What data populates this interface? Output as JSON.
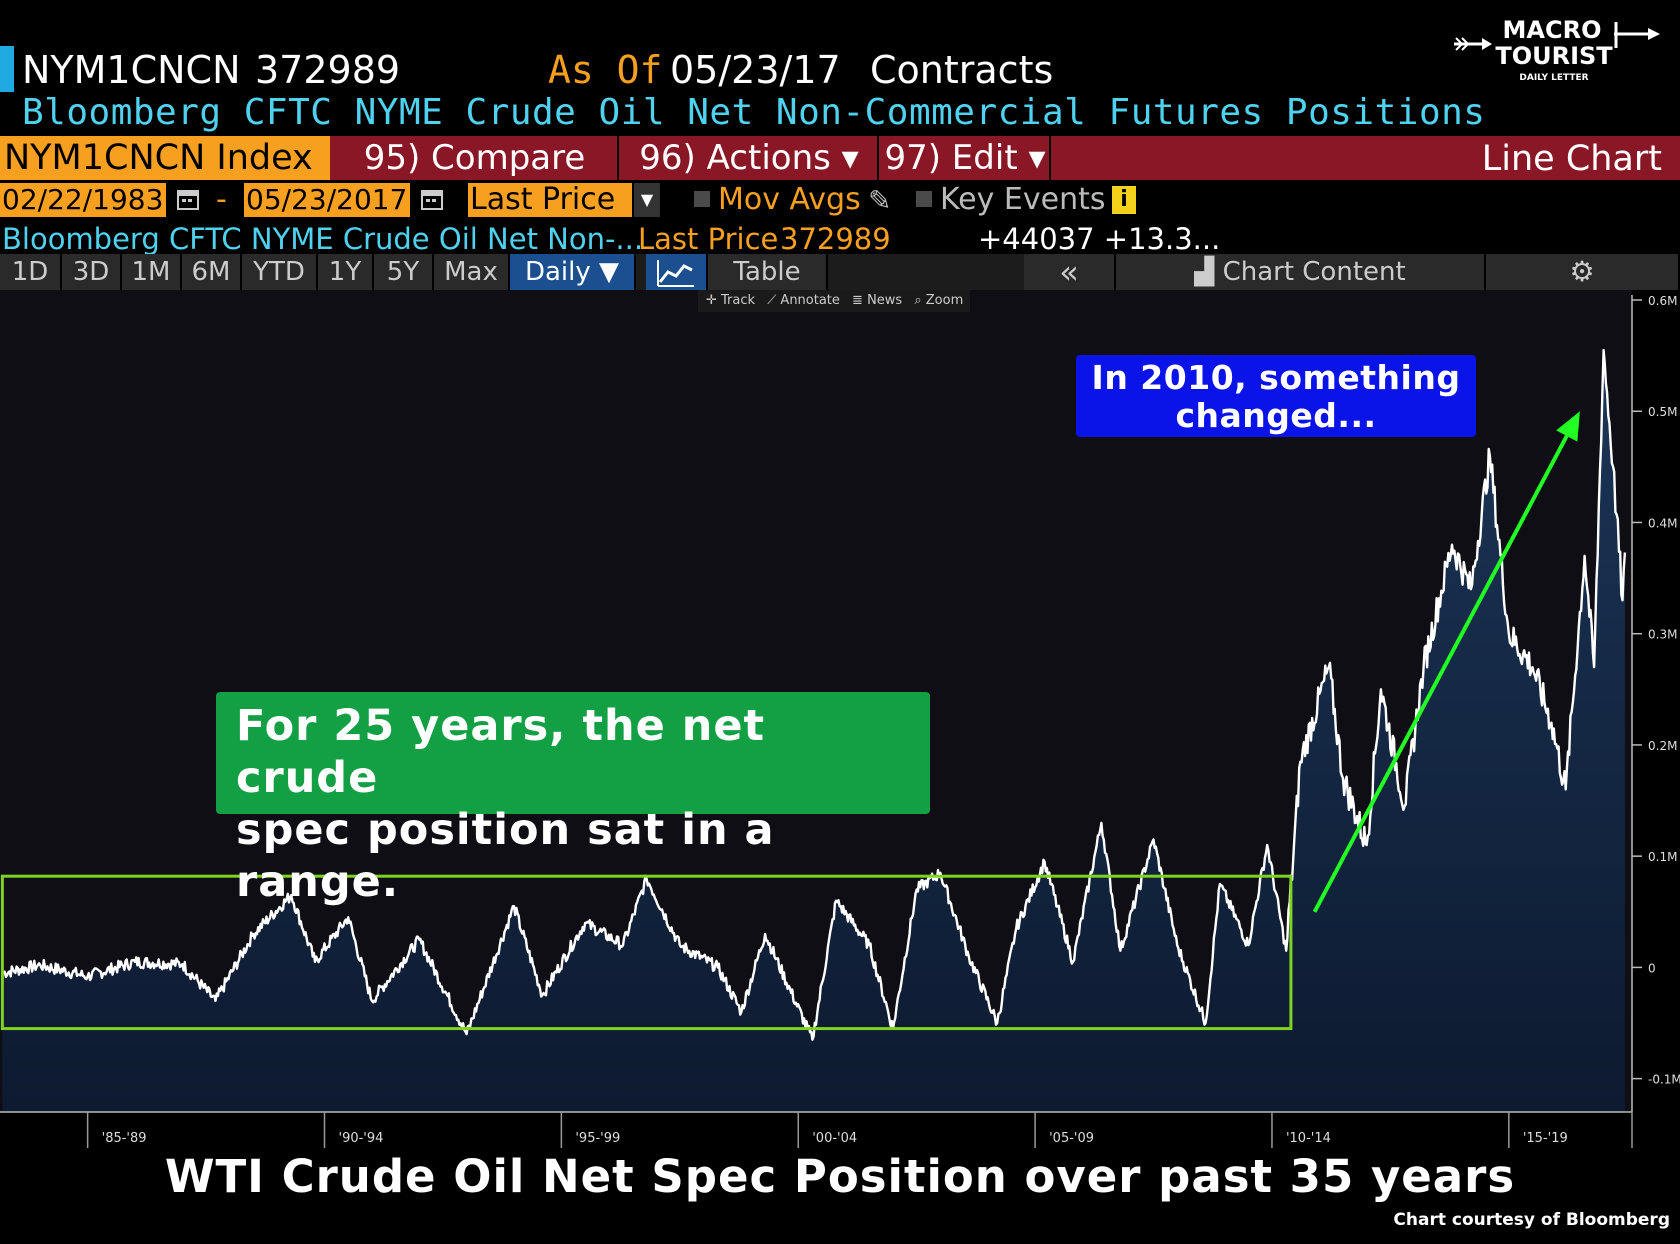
{
  "header": {
    "ticker": "NYM1CNCN",
    "value": "372989",
    "asof_label": "As Of",
    "asof_date": "05/23/17",
    "units": "Contracts",
    "long_title": "Bloomberg CFTC NYME Crude Oil Net Non-Commercial Futures Positions"
  },
  "logo": {
    "line1": "MACRO",
    "line2": "TOURIST",
    "line3": "DAILY LETTER"
  },
  "toolbar": {
    "index": "NYM1CNCN Index",
    "compare": "95) Compare",
    "actions": "96) Actions ▾",
    "edit": "97) Edit ▾",
    "chart_type": "Line Chart"
  },
  "dates": {
    "start": "02/22/1983",
    "dash": "-",
    "end": "05/23/2017",
    "field": "Last Price",
    "mov_avgs": "Mov Avgs",
    "key_events": "Key Events",
    "info": "i"
  },
  "desc_row": {
    "description": "Bloomberg CFTC NYME Crude Oil Net Non-...",
    "last_price_label": "Last Price",
    "last_price_value": "372989",
    "change": "+44037 +13.3..."
  },
  "ranges": [
    "1D",
    "3D",
    "1M",
    "6M",
    "YTD",
    "1Y",
    "5Y",
    "Max"
  ],
  "frequency": "Daily ▼",
  "view_buttons": {
    "table": "Table",
    "collapse": "«",
    "chart_content": "Chart Content",
    "gear": "⚙"
  },
  "mini_tools": [
    "✛ Track",
    "⟋ Annotate",
    "≣ News",
    "⌕ Zoom"
  ],
  "annotations": {
    "green_line1": "For 25 years, the net crude",
    "green_line2": "spec position sat in a range.",
    "blue_line1": "In 2010, something",
    "blue_line2": "changed..."
  },
  "caption": "WTI Crude Oil Net Spec Position over past 35 years",
  "credit": "Chart courtesy of Bloomberg",
  "colors": {
    "orange": "#f7a020",
    "maroon": "#8a1726",
    "cyan": "#4fd2f0",
    "area_top": "#1b3557",
    "area_bottom": "#0d1a30",
    "green_box": "#13a045",
    "blue_box": "#0a14e8",
    "arrow": "#22ff22",
    "range_rect": "#7ed321"
  },
  "chart_data": {
    "type": "area",
    "title": "",
    "xlabel": "",
    "ylabel": "",
    "x_tick_labels": [
      "'85-'89",
      "'90-'94",
      "'95-'99",
      "'00-'04",
      "'05-'09",
      "'10-'14",
      "'15-'19"
    ],
    "y_tick_labels": [
      "0.6M",
      "0.5M",
      "0.4M",
      "0.3M",
      "0.2M",
      "0.1M",
      "0",
      "-0.1M"
    ],
    "ylim": [
      -130000,
      600000
    ],
    "xlim": [
      1983.15,
      2017.6
    ],
    "grid": false,
    "series": [
      {
        "values": [
          [
            1983.2,
            -5000
          ],
          [
            1984.0,
            2000
          ],
          [
            1985.0,
            -8000
          ],
          [
            1986.0,
            5000
          ],
          [
            1987.0,
            3000
          ],
          [
            1987.7,
            -30000
          ],
          [
            1988.5,
            30000
          ],
          [
            1989.3,
            65000
          ],
          [
            1989.8,
            5000
          ],
          [
            1990.5,
            45000
          ],
          [
            1991.0,
            -30000
          ],
          [
            1992.0,
            25000
          ],
          [
            1993.0,
            -60000
          ],
          [
            1994.0,
            55000
          ],
          [
            1994.6,
            -25000
          ],
          [
            1995.5,
            40000
          ],
          [
            1996.3,
            20000
          ],
          [
            1996.8,
            80000
          ],
          [
            1997.5,
            20000
          ],
          [
            1998.3,
            0
          ],
          [
            1998.8,
            -40000
          ],
          [
            1999.3,
            30000
          ],
          [
            2000.3,
            -65000
          ],
          [
            2000.8,
            60000
          ],
          [
            2001.5,
            20000
          ],
          [
            2002.0,
            -55000
          ],
          [
            2002.5,
            70000
          ],
          [
            2003.0,
            85000
          ],
          [
            2003.6,
            10000
          ],
          [
            2004.2,
            -50000
          ],
          [
            2004.6,
            35000
          ],
          [
            2005.2,
            95000
          ],
          [
            2005.8,
            5000
          ],
          [
            2006.4,
            130000
          ],
          [
            2006.8,
            15000
          ],
          [
            2007.5,
            115000
          ],
          [
            2008.0,
            20000
          ],
          [
            2008.6,
            -50000
          ],
          [
            2008.9,
            75000
          ],
          [
            2009.5,
            20000
          ],
          [
            2009.9,
            110000
          ],
          [
            2010.3,
            15000
          ],
          [
            2010.6,
            185000
          ],
          [
            2011.2,
            270000
          ],
          [
            2011.5,
            170000
          ],
          [
            2012.0,
            110000
          ],
          [
            2012.3,
            250000
          ],
          [
            2012.8,
            145000
          ],
          [
            2013.2,
            270000
          ],
          [
            2013.8,
            380000
          ],
          [
            2014.2,
            340000
          ],
          [
            2014.6,
            460000
          ],
          [
            2015.0,
            300000
          ],
          [
            2015.5,
            270000
          ],
          [
            2015.9,
            220000
          ],
          [
            2016.2,
            160000
          ],
          [
            2016.6,
            370000
          ],
          [
            2016.8,
            270000
          ],
          [
            2017.0,
            555000
          ],
          [
            2017.2,
            450000
          ],
          [
            2017.4,
            330000
          ],
          [
            2017.45,
            373000
          ]
        ]
      }
    ],
    "highlight_range": {
      "x": [
        1983.2,
        2010.4
      ],
      "y": [
        -55000,
        82000
      ]
    },
    "arrow": {
      "from": [
        2010.9,
        50000
      ],
      "to": [
        2016.5,
        500000
      ]
    }
  }
}
